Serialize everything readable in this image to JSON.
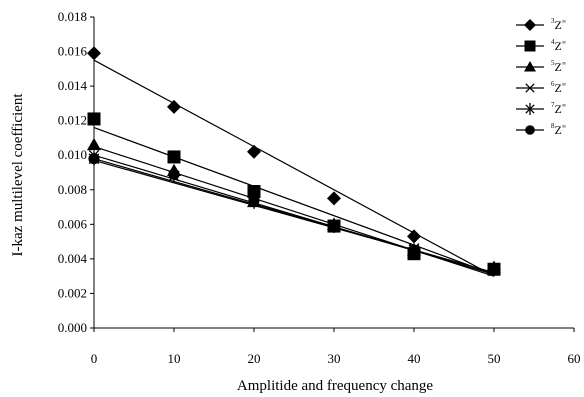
{
  "chart_data": {
    "type": "line",
    "title": "",
    "xlabel": "Amplitide and frequency change",
    "ylabel": "I-kaz multilevel coefficient",
    "xlim": [
      0,
      60
    ],
    "ylim": [
      0,
      0.018
    ],
    "xticks": [
      "0",
      "10",
      "20",
      "30",
      "40",
      "50",
      "60"
    ],
    "yticks": [
      "0.000",
      "0.002",
      "0.004",
      "0.006",
      "0.008",
      "0.010",
      "0.012",
      "0.014",
      "0.016",
      "0.018"
    ],
    "grid": false,
    "legend_position": "top-right",
    "x": [
      0,
      10,
      20,
      30,
      40,
      50
    ],
    "series": [
      {
        "name": "3Z∞",
        "sup": "3",
        "marker": "diamond",
        "values": [
          0.0159,
          0.0128,
          0.0102,
          0.0075,
          0.0053,
          0.0034
        ],
        "fit": [
          0.0155,
          0.003
        ]
      },
      {
        "name": "4Z∞",
        "sup": "4",
        "marker": "square",
        "values": [
          0.0121,
          0.0099,
          0.0079,
          0.0059,
          0.0043,
          0.0034
        ],
        "fit": [
          0.0116,
          0.0031
        ]
      },
      {
        "name": "5Z∞",
        "sup": "5",
        "marker": "triangle",
        "values": [
          0.0106,
          0.0091,
          0.0073,
          0.006,
          0.0045,
          0.0035
        ],
        "fit": [
          0.0105,
          0.003
        ]
      },
      {
        "name": "6Z∞",
        "sup": "6",
        "marker": "x",
        "values": [
          0.01,
          0.0088,
          0.0074,
          0.0059,
          0.0046,
          0.0034
        ],
        "fit": [
          0.01,
          0.0031
        ]
      },
      {
        "name": "7Z∞",
        "sup": "7",
        "marker": "star",
        "values": [
          0.0098,
          0.0088,
          0.0073,
          0.0059,
          0.0045,
          0.0034
        ],
        "fit": [
          0.0098,
          0.0032
        ]
      },
      {
        "name": "8Z∞",
        "sup": "8",
        "marker": "circle",
        "values": [
          0.0098,
          0.0089,
          0.0074,
          0.0059,
          0.0045,
          0.0034
        ],
        "fit": [
          0.0097,
          0.0032
        ]
      }
    ]
  }
}
